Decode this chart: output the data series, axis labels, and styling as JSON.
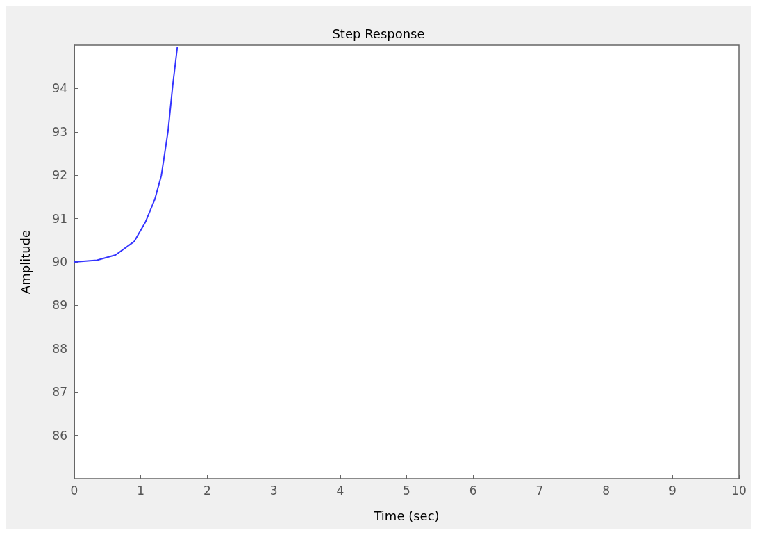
{
  "chart_data": {
    "type": "line",
    "title": "Step Response",
    "xlabel": "Time (sec)",
    "ylabel": "Amplitude",
    "series": [
      {
        "color": "#3333ff",
        "x": [
          0,
          0.34,
          0.62,
          0.9,
          1.07,
          1.21,
          1.31,
          1.41,
          1.48,
          1.55
        ],
        "values": [
          90.0,
          90.04,
          90.16,
          90.47,
          90.92,
          91.44,
          92.0,
          93.02,
          94.07,
          94.96
        ]
      }
    ],
    "xlim": [
      0,
      10
    ],
    "xticks": [
      0,
      1,
      2,
      3,
      4,
      5,
      6,
      7,
      8,
      9,
      10
    ],
    "ylim": [
      85,
      95
    ],
    "yticks": [
      86,
      87,
      88,
      89,
      90,
      91,
      92,
      93,
      94
    ],
    "grid": false,
    "marker": "none"
  }
}
